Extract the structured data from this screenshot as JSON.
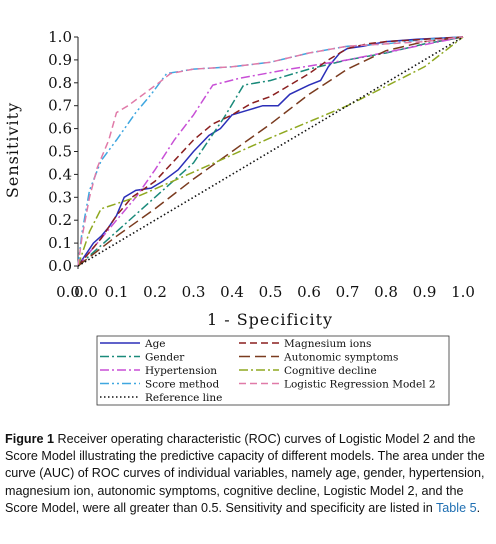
{
  "chart_data": {
    "type": "line",
    "xlabel": "1 - Specificity",
    "ylabel": "Sensitivity",
    "xlim": [
      0,
      1
    ],
    "ylim": [
      0,
      1
    ],
    "xticks": [
      "0.0",
      "0.0",
      "0.1",
      "0.2",
      "0.3",
      "0.4",
      "0.5",
      "0.6",
      "0.7",
      "0.8",
      "0.9",
      "1.0"
    ],
    "yticks": [
      "0.0",
      "0.1",
      "0.2",
      "0.3",
      "0.4",
      "0.5",
      "0.6",
      "0.7",
      "0.8",
      "0.9",
      "1.0"
    ],
    "grid": false,
    "legend_placement": "bottom",
    "series": [
      {
        "name": "Age",
        "color": "#2b2fb8",
        "dash": "solid",
        "points": [
          [
            0,
            0
          ],
          [
            0.02,
            0.05
          ],
          [
            0.04,
            0.1
          ],
          [
            0.06,
            0.13
          ],
          [
            0.08,
            0.17
          ],
          [
            0.1,
            0.22
          ],
          [
            0.12,
            0.3
          ],
          [
            0.15,
            0.33
          ],
          [
            0.19,
            0.34
          ],
          [
            0.22,
            0.37
          ],
          [
            0.26,
            0.42
          ],
          [
            0.3,
            0.5
          ],
          [
            0.34,
            0.57
          ],
          [
            0.37,
            0.6
          ],
          [
            0.4,
            0.66
          ],
          [
            0.44,
            0.68
          ],
          [
            0.48,
            0.7
          ],
          [
            0.52,
            0.7
          ],
          [
            0.55,
            0.75
          ],
          [
            0.6,
            0.79
          ],
          [
            0.63,
            0.81
          ],
          [
            0.65,
            0.87
          ],
          [
            0.68,
            0.93
          ],
          [
            0.7,
            0.95
          ],
          [
            0.74,
            0.96
          ],
          [
            0.8,
            0.98
          ],
          [
            0.88,
            0.99
          ],
          [
            1,
            1
          ]
        ]
      },
      {
        "name": "Gender",
        "color": "#1a8a7a",
        "dash": "dashdot",
        "points": [
          [
            0,
            0
          ],
          [
            0.1,
            0.15
          ],
          [
            0.2,
            0.3
          ],
          [
            0.3,
            0.45
          ],
          [
            0.38,
            0.65
          ],
          [
            0.43,
            0.79
          ],
          [
            0.5,
            0.81
          ],
          [
            0.6,
            0.86
          ],
          [
            0.7,
            0.9
          ],
          [
            0.8,
            0.93
          ],
          [
            0.9,
            0.97
          ],
          [
            1,
            1
          ]
        ]
      },
      {
        "name": "Hypertension",
        "color": "#c84fd6",
        "dash": "dashdot",
        "points": [
          [
            0,
            0
          ],
          [
            0.05,
            0.1
          ],
          [
            0.1,
            0.2
          ],
          [
            0.15,
            0.3
          ],
          [
            0.2,
            0.42
          ],
          [
            0.25,
            0.55
          ],
          [
            0.3,
            0.66
          ],
          [
            0.35,
            0.79
          ],
          [
            0.42,
            0.82
          ],
          [
            0.55,
            0.86
          ],
          [
            0.7,
            0.9
          ],
          [
            0.85,
            0.95
          ],
          [
            1,
            1
          ]
        ]
      },
      {
        "name": "Score method",
        "color": "#3fa7e0",
        "dash": "dashdotdot",
        "points": [
          [
            0,
            0
          ],
          [
            0.01,
            0.14
          ],
          [
            0.03,
            0.33
          ],
          [
            0.06,
            0.46
          ],
          [
            0.1,
            0.55
          ],
          [
            0.15,
            0.67
          ],
          [
            0.19,
            0.75
          ],
          [
            0.23,
            0.84
          ],
          [
            0.3,
            0.86
          ],
          [
            0.4,
            0.87
          ],
          [
            0.5,
            0.89
          ],
          [
            0.6,
            0.93
          ],
          [
            0.7,
            0.96
          ],
          [
            0.8,
            0.97
          ],
          [
            0.9,
            0.99
          ],
          [
            1,
            1
          ]
        ]
      },
      {
        "name": "Magnesium ions",
        "color": "#8a1f1f",
        "dash": "dashed",
        "points": [
          [
            0,
            0
          ],
          [
            0.06,
            0.12
          ],
          [
            0.1,
            0.22
          ],
          [
            0.14,
            0.3
          ],
          [
            0.2,
            0.37
          ],
          [
            0.25,
            0.46
          ],
          [
            0.3,
            0.55
          ],
          [
            0.35,
            0.62
          ],
          [
            0.4,
            0.66
          ],
          [
            0.45,
            0.71
          ],
          [
            0.5,
            0.74
          ],
          [
            0.55,
            0.79
          ],
          [
            0.6,
            0.84
          ],
          [
            0.65,
            0.9
          ],
          [
            0.7,
            0.95
          ],
          [
            0.75,
            0.97
          ],
          [
            0.8,
            0.98
          ],
          [
            0.9,
            0.99
          ],
          [
            1,
            1
          ]
        ]
      },
      {
        "name": "Autonomic symptoms",
        "color": "#7a3b1f",
        "dash": "longdash",
        "points": [
          [
            0,
            0
          ],
          [
            0.1,
            0.13
          ],
          [
            0.2,
            0.25
          ],
          [
            0.3,
            0.38
          ],
          [
            0.4,
            0.5
          ],
          [
            0.5,
            0.62
          ],
          [
            0.6,
            0.75
          ],
          [
            0.7,
            0.86
          ],
          [
            0.8,
            0.94
          ],
          [
            0.9,
            0.98
          ],
          [
            1,
            1
          ]
        ]
      },
      {
        "name": "Cognitive decline",
        "color": "#8fa820",
        "dash": "dashdot",
        "points": [
          [
            0,
            0
          ],
          [
            0.03,
            0.15
          ],
          [
            0.06,
            0.25
          ],
          [
            0.15,
            0.3
          ],
          [
            0.3,
            0.41
          ],
          [
            0.5,
            0.56
          ],
          [
            0.7,
            0.7
          ],
          [
            0.9,
            0.87
          ],
          [
            1,
            1
          ]
        ]
      },
      {
        "name": "Logistic Regression Model 2",
        "color": "#e07aa8",
        "dash": "dashed",
        "points": [
          [
            0,
            0
          ],
          [
            0.01,
            0.12
          ],
          [
            0.03,
            0.3
          ],
          [
            0.05,
            0.43
          ],
          [
            0.08,
            0.55
          ],
          [
            0.1,
            0.67
          ],
          [
            0.13,
            0.7
          ],
          [
            0.17,
            0.75
          ],
          [
            0.21,
            0.8
          ],
          [
            0.24,
            0.84
          ],
          [
            0.3,
            0.86
          ],
          [
            0.4,
            0.87
          ],
          [
            0.5,
            0.89
          ],
          [
            0.6,
            0.93
          ],
          [
            0.7,
            0.96
          ],
          [
            0.8,
            0.97
          ],
          [
            0.9,
            0.98
          ],
          [
            1,
            1
          ]
        ]
      },
      {
        "name": "Reference line",
        "color": "#111111",
        "dash": "dotted",
        "points": [
          [
            0,
            0
          ],
          [
            1,
            1
          ]
        ]
      }
    ]
  },
  "caption": {
    "figure_label": "Figure 1",
    "text": " Receiver operating characteristic (ROC) curves of Logistic Model 2 and the Score Model illustrating the predictive capacity of different models. The area under the curve (AUC) of ROC curves of individual variables, namely age, gender, hypertension, magnesium ion, autonomic symptoms, cognitive decline, Logistic Model 2, and the Score Model, were all greater than 0.5. Sensitivity and specificity are listed in ",
    "table_ref": "Table 5",
    "end": "."
  }
}
